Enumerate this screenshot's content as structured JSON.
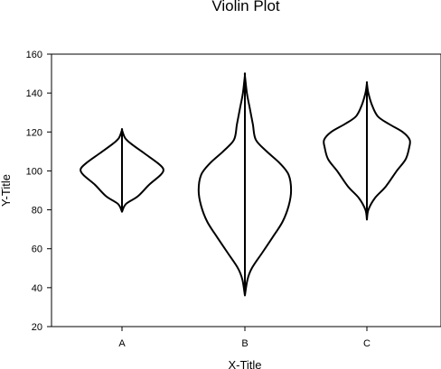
{
  "chart_data": {
    "type": "violin",
    "title": "Violin Plot",
    "xlabel": "X-Title",
    "ylabel": "Y-Title",
    "ylim": [
      20,
      160
    ],
    "yticks": [
      20,
      40,
      60,
      80,
      100,
      120,
      140,
      160
    ],
    "grid": false,
    "legend": "none",
    "categories": [
      "A",
      "B",
      "C"
    ],
    "series": [
      {
        "category": "A",
        "min": 79,
        "max": 121,
        "profile": [
          [
            79,
            0
          ],
          [
            83,
            0.08
          ],
          [
            87,
            0.32
          ],
          [
            93,
            0.55
          ],
          [
            98,
            0.78
          ],
          [
            101,
            0.83
          ],
          [
            104,
            0.72
          ],
          [
            109,
            0.45
          ],
          [
            114,
            0.18
          ],
          [
            117,
            0.06
          ],
          [
            121,
            0
          ]
        ]
      },
      {
        "category": "B",
        "min": 36,
        "max": 149,
        "profile": [
          [
            36,
            0
          ],
          [
            44,
            0.05
          ],
          [
            50,
            0.14
          ],
          [
            58,
            0.35
          ],
          [
            66,
            0.56
          ],
          [
            74,
            0.76
          ],
          [
            82,
            0.88
          ],
          [
            90,
            0.93
          ],
          [
            98,
            0.88
          ],
          [
            104,
            0.7
          ],
          [
            110,
            0.44
          ],
          [
            116,
            0.22
          ],
          [
            124,
            0.16
          ],
          [
            132,
            0.1
          ],
          [
            140,
            0.04
          ],
          [
            149,
            0
          ]
        ]
      },
      {
        "category": "C",
        "min": 75,
        "max": 145,
        "profile": [
          [
            75,
            0
          ],
          [
            80,
            0.03
          ],
          [
            86,
            0.16
          ],
          [
            92,
            0.38
          ],
          [
            100,
            0.6
          ],
          [
            106,
            0.78
          ],
          [
            112,
            0.85
          ],
          [
            116,
            0.86
          ],
          [
            120,
            0.72
          ],
          [
            124,
            0.45
          ],
          [
            128,
            0.22
          ],
          [
            134,
            0.1
          ],
          [
            140,
            0.03
          ],
          [
            145,
            0
          ]
        ]
      }
    ]
  }
}
